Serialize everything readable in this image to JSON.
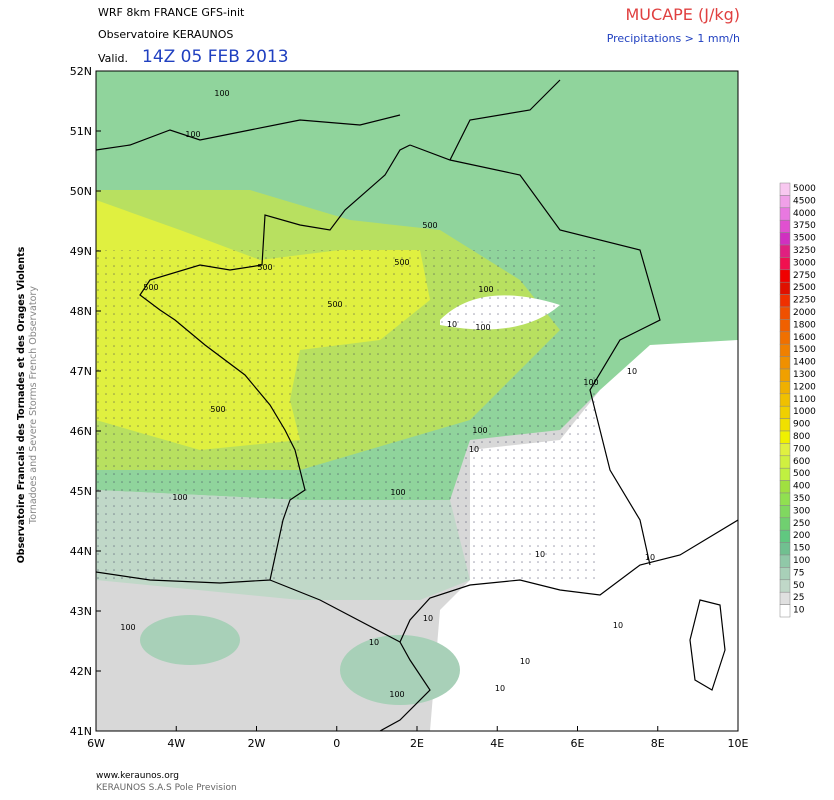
{
  "header": {
    "model": "WRF 8km FRANCE  GFS-init",
    "org": "Observatoire KERAUNOS",
    "valid_label": "Valid.",
    "valid_time": "14Z 05 FEB 2013",
    "field": "MUCAPE (J/kg)",
    "precip_note": "Precipitations > 1 mm/h"
  },
  "map": {
    "lat_labels": [
      "52N",
      "51N",
      "50N",
      "49N",
      "48N",
      "47N",
      "46N",
      "45N",
      "44N",
      "43N",
      "42N",
      "41N"
    ],
    "lon_labels": [
      "6W",
      "4W",
      "2W",
      "0",
      "2E",
      "4E",
      "6E",
      "8E",
      "10E"
    ],
    "contour_labels": [
      "100",
      "100",
      "500",
      "500",
      "500",
      "500",
      "500",
      "500",
      "100",
      "10",
      "100",
      "100",
      "10",
      "100",
      "10",
      "100",
      "100",
      "10",
      "10",
      "10",
      "10",
      "100",
      "10",
      "100",
      "10",
      "10"
    ]
  },
  "colorbar": {
    "labels": [
      "5000",
      "4500",
      "4000",
      "3750",
      "3500",
      "3250",
      "3000",
      "2750",
      "2500",
      "2250",
      "2000",
      "1800",
      "1600",
      "1500",
      "1400",
      "1300",
      "1200",
      "1100",
      "1000",
      "900",
      "800",
      "700",
      "600",
      "500",
      "400",
      "350",
      "300",
      "250",
      "200",
      "150",
      "100",
      "75",
      "50",
      "25",
      "10"
    ],
    "colors": [
      "#f8c8f0",
      "#f0a0e8",
      "#e878e0",
      "#e050d0",
      "#d030c0",
      "#e02080",
      "#f01050",
      "#f00000",
      "#e01000",
      "#f03000",
      "#f05000",
      "#f06000",
      "#f07000",
      "#f08000",
      "#f09000",
      "#f0a000",
      "#f0b000",
      "#f0c000",
      "#f0d000",
      "#f0e000",
      "#f0f000",
      "#e0f040",
      "#d0f040",
      "#c0f040",
      "#a0e040",
      "#90e050",
      "#80d860",
      "#70d070",
      "#60c880",
      "#70c090",
      "#90c8a8",
      "#a8d0b8",
      "#c0d8c8",
      "#e0e0e0",
      "#ffffff"
    ]
  },
  "side": {
    "title": "Observatoire Francais des Tornades et des Orages Violents",
    "subtitle": "Tornadoes and Severe Storms French Observatory"
  },
  "footer": {
    "url": "www.keraunos.org",
    "company": "KERAUNOS S.A.S Pole Prevision"
  }
}
